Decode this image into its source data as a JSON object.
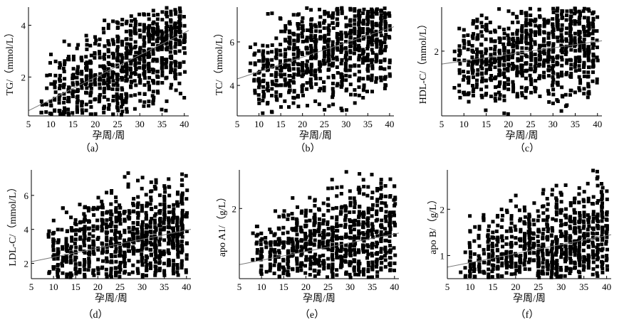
{
  "chart_data": [
    {
      "type": "scatter",
      "panel_label": "（a）",
      "xlabel": "孕周/周",
      "ylabel": "TG/（mmol/L）",
      "xlim": [
        5,
        41
      ],
      "ylim": [
        0.5,
        4.7
      ],
      "xticks": [
        5,
        10,
        15,
        20,
        25,
        30,
        35,
        40
      ],
      "yticks": [
        2,
        4
      ],
      "trend": [
        [
          5,
          0.7
        ],
        [
          41,
          3.8
        ]
      ],
      "grid": false
    },
    {
      "type": "scatter",
      "panel_label": "（b）",
      "xlabel": "孕周/周",
      "ylabel": "TC/（mmol/L）",
      "xlim": [
        5,
        41
      ],
      "ylim": [
        2.6,
        7.6
      ],
      "xticks": [
        5,
        10,
        15,
        20,
        25,
        30,
        35,
        40
      ],
      "yticks": [
        4,
        6
      ],
      "trend": [
        [
          5,
          4.3
        ],
        [
          41,
          6.7
        ]
      ],
      "grid": false
    },
    {
      "type": "scatter",
      "panel_label": "（c）",
      "xlabel": "孕周/周",
      "ylabel": "HDL-C/（mmol/L）",
      "xlim": [
        5,
        41
      ],
      "ylim": [
        0.75,
        2.85
      ],
      "xticks": [
        5,
        10,
        15,
        20,
        25,
        30,
        35,
        40
      ],
      "yticks": [
        2
      ],
      "trend": [
        [
          5,
          1.75
        ],
        [
          41,
          2.2
        ]
      ],
      "grid": false
    },
    {
      "type": "scatter",
      "panel_label": "（d）",
      "xlabel": "孕周/周",
      "ylabel": "LDL-C/（mmol/L）",
      "xlim": [
        5,
        41
      ],
      "ylim": [
        1.1,
        7.5
      ],
      "xticks": [
        5,
        10,
        15,
        20,
        25,
        30,
        35,
        40
      ],
      "yticks": [
        2,
        4,
        6
      ],
      "trend": [
        [
          5,
          2.1
        ],
        [
          41,
          4.0
        ]
      ],
      "grid": false
    },
    {
      "type": "scatter",
      "panel_label": "（e）",
      "xlabel": "孕周/周",
      "ylabel": "apo A1/（g/L）",
      "xlim": [
        5,
        41
      ],
      "ylim": [
        1.0,
        2.55
      ],
      "xticks": [
        5,
        10,
        15,
        20,
        25,
        30,
        35,
        40
      ],
      "yticks": [
        2
      ],
      "trend": [
        [
          5,
          1.2
        ],
        [
          41,
          1.65
        ]
      ],
      "grid": false
    },
    {
      "type": "scatter",
      "panel_label": "（f）",
      "xlabel": "孕周/周",
      "ylabel": "apo B/（g/L）",
      "xlim": [
        5,
        41
      ],
      "ylim": [
        0.5,
        2.85
      ],
      "xticks": [
        5,
        10,
        15,
        20,
        25,
        30,
        35,
        40
      ],
      "yticks": [
        1,
        2
      ],
      "trend": [
        [
          5,
          0.75
        ],
        [
          41,
          1.45
        ]
      ],
      "grid": false
    }
  ]
}
